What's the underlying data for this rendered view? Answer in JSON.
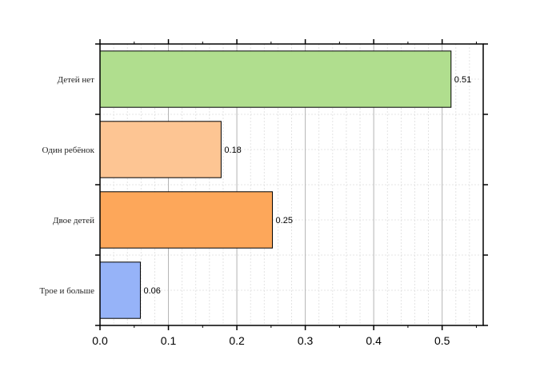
{
  "chart_data": {
    "type": "bar",
    "orientation": "horizontal",
    "categories": [
      "Детей нет",
      "Один ребёнок",
      "Двое детей",
      "Трое и больше"
    ],
    "values": [
      0.513,
      0.177,
      0.252,
      0.059
    ],
    "value_labels": [
      "0.51",
      "0.18",
      "0.25",
      "0.06"
    ],
    "colors": [
      "#b0de8e",
      "#fdc593",
      "#fda75a",
      "#96b3f8"
    ],
    "xlim": [
      0,
      0.56
    ],
    "xticks": [
      0.0,
      0.1,
      0.2,
      0.3,
      0.4,
      0.5
    ],
    "xtick_labels": [
      "0.0",
      "0.1",
      "0.2",
      "0.3",
      "0.4",
      "0.5"
    ],
    "grid": true,
    "title": "",
    "xlabel": "",
    "ylabel": ""
  }
}
